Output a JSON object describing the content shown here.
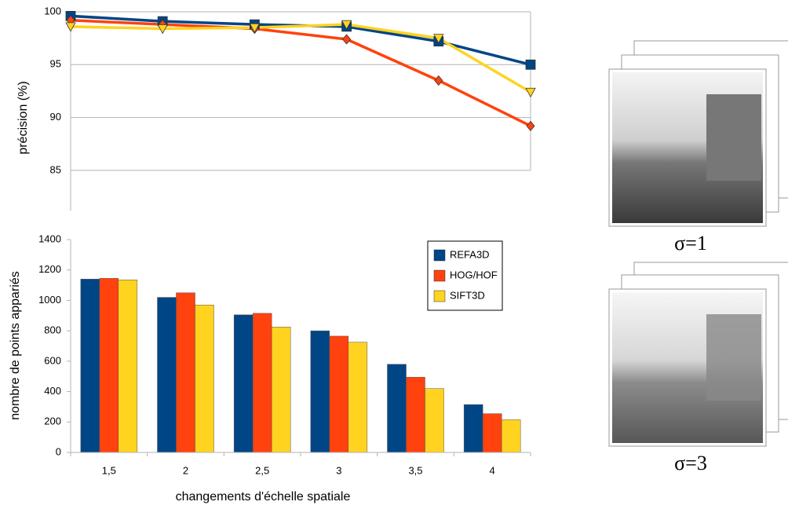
{
  "chart_data": [
    {
      "type": "line",
      "y_label": "précision (%)",
      "ylim": [
        81.2,
        100
      ],
      "yticks": [
        85,
        90,
        95,
        100
      ],
      "grid": true,
      "series": [
        {
          "name": "REFA3D",
          "color": "#004586",
          "marker": "square",
          "values": [
            99.6,
            99.1,
            98.8,
            98.6,
            97.2,
            95.0
          ]
        },
        {
          "name": "HOG/HOF",
          "color": "#ff420e",
          "marker": "diamond",
          "values": [
            99.2,
            98.8,
            98.4,
            97.4,
            93.5,
            89.2
          ]
        },
        {
          "name": "SIFT3D",
          "color": "#ffd320",
          "marker": "triangle",
          "values": [
            98.6,
            98.4,
            98.5,
            98.8,
            97.5,
            92.4
          ]
        }
      ]
    },
    {
      "type": "bar",
      "y_label": "nombre de points appariés",
      "x_label": "changements d'échelle spatiale",
      "categories": [
        "1,5",
        "2",
        "2,5",
        "3",
        "3,5",
        "4"
      ],
      "ylim": [
        0,
        1400
      ],
      "yticks": [
        0,
        200,
        400,
        600,
        800,
        1000,
        1200,
        1400
      ],
      "grid": false,
      "legend": "top-right",
      "series": [
        {
          "name": "REFA3D",
          "color": "#004586",
          "values": [
            1140,
            1020,
            905,
            800,
            580,
            315
          ]
        },
        {
          "name": "HOG/HOF",
          "color": "#ff420e",
          "values": [
            1145,
            1050,
            915,
            765,
            495,
            255
          ]
        },
        {
          "name": "SIFT3D",
          "color": "#ffd320",
          "values": [
            1135,
            970,
            825,
            725,
            420,
            215
          ]
        }
      ]
    }
  ],
  "panels": [
    {
      "label": "σ=1"
    },
    {
      "label": "σ=3"
    }
  ]
}
